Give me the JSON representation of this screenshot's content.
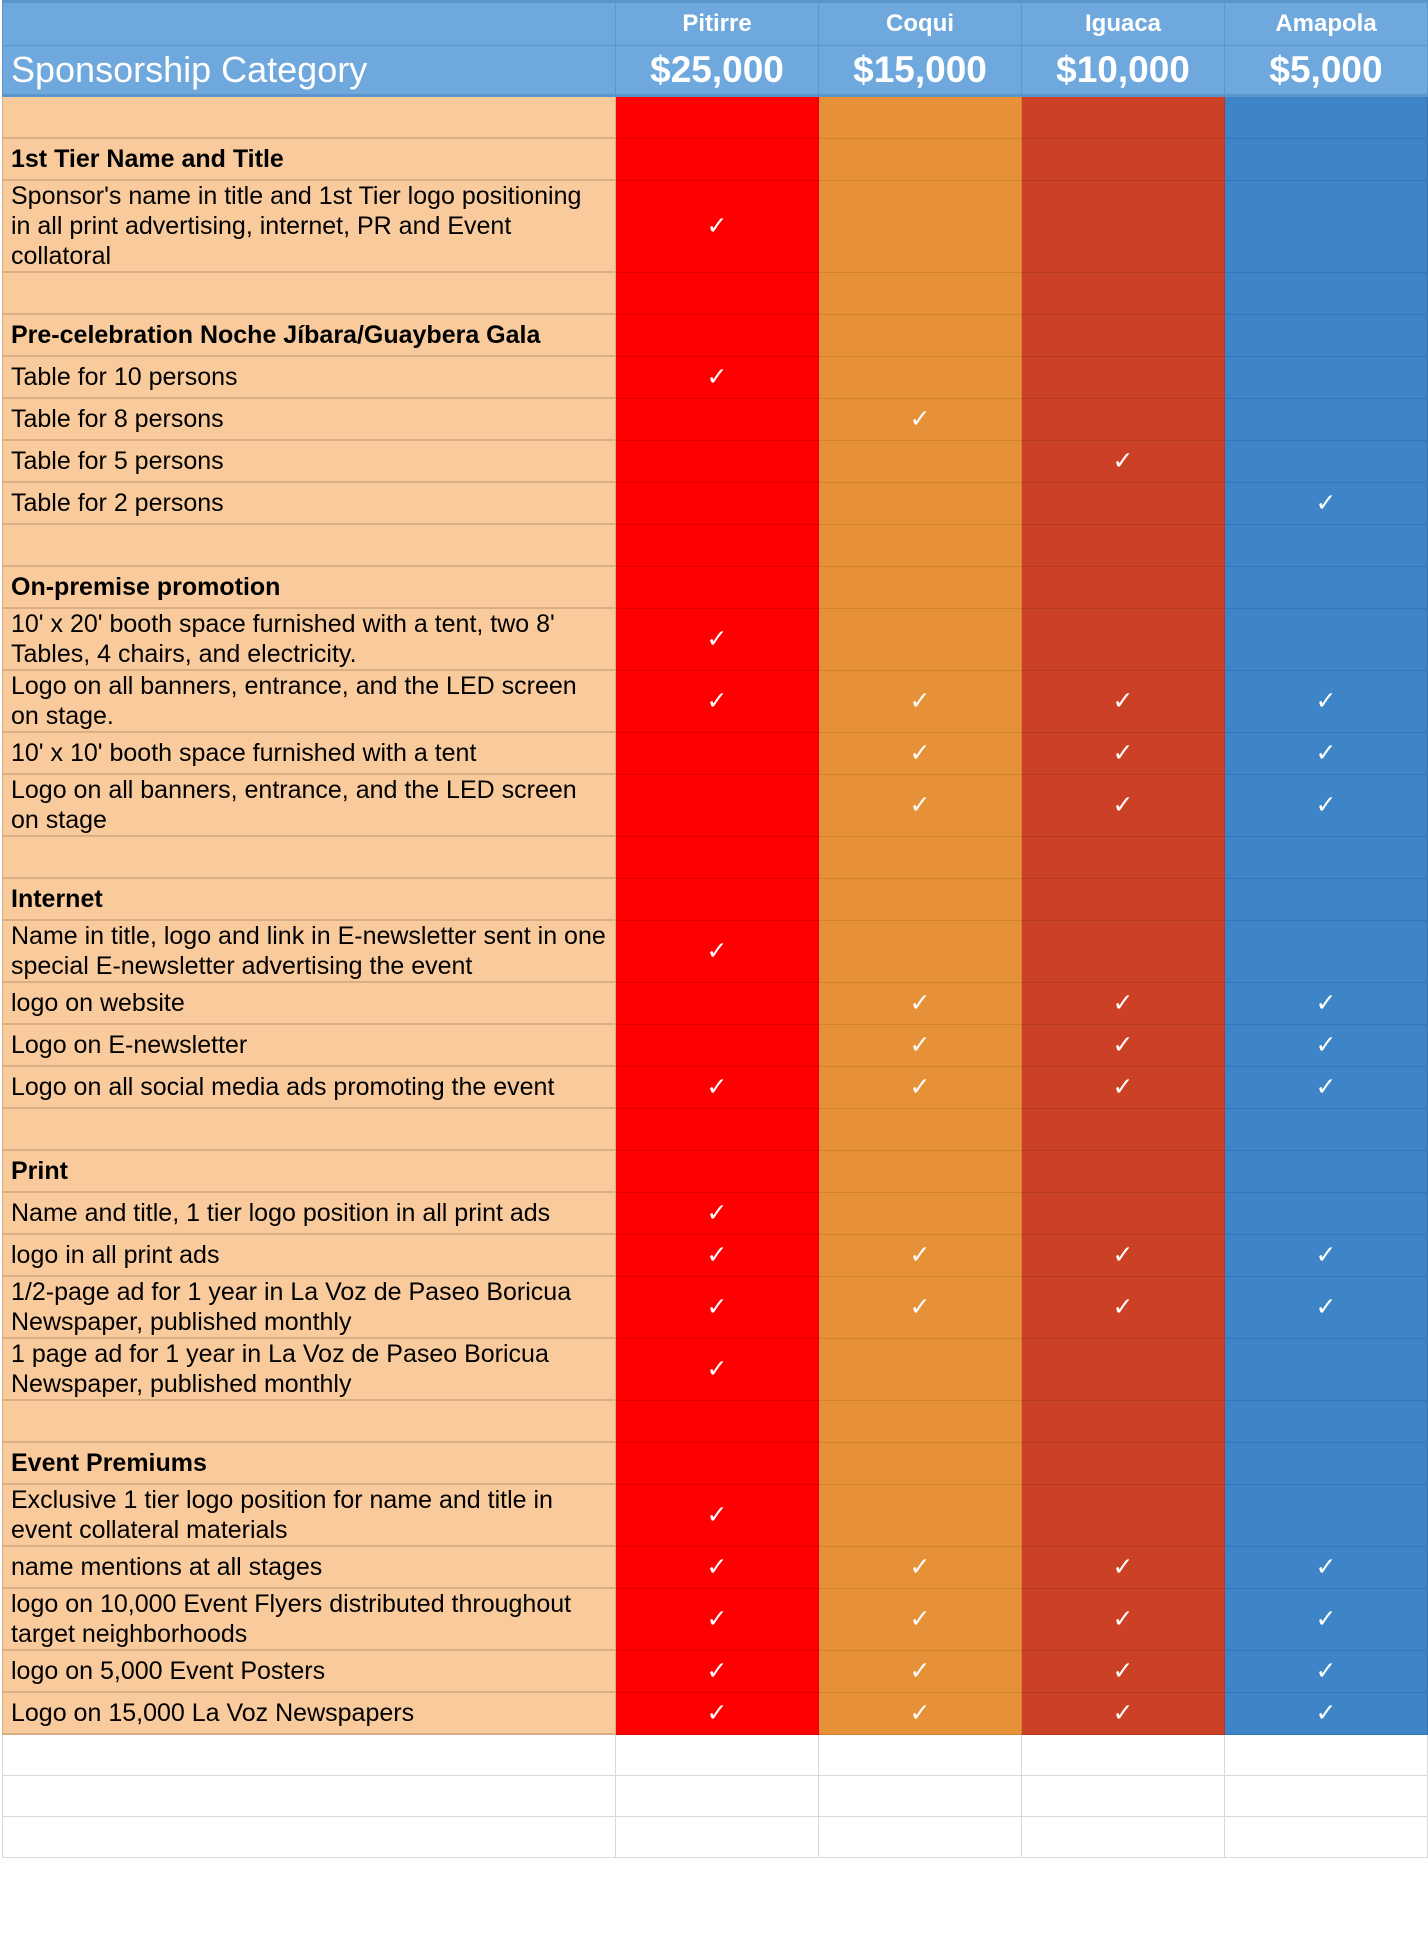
{
  "header": {
    "category_label": "Sponsorship Category",
    "tiers": [
      {
        "name": "Pitirre",
        "price": "$25,000",
        "color": "#ff0000"
      },
      {
        "name": "Coqui",
        "price": "$15,000",
        "color": "#e69138"
      },
      {
        "name": "Iguaca",
        "price": "$10,000",
        "color": "#cc4125"
      },
      {
        "name": "Amapola",
        "price": "$5,000",
        "color": "#3d85c6"
      }
    ]
  },
  "check_symbol": "✓",
  "rows": [
    {
      "type": "blank",
      "label": "",
      "checks": [
        0,
        0,
        0,
        0
      ]
    },
    {
      "type": "section",
      "label": "1st Tier Name and Title",
      "checks": [
        0,
        0,
        0,
        0
      ]
    },
    {
      "type": "item",
      "label": "Sponsor's name in title and 1st Tier logo positioning in all print advertising, internet, PR and Event collatoral",
      "checks": [
        1,
        0,
        0,
        0
      ]
    },
    {
      "type": "blank",
      "label": "",
      "checks": [
        0,
        0,
        0,
        0
      ]
    },
    {
      "type": "section",
      "label": "Pre-celebration Noche Jíbara/Guaybera Gala",
      "checks": [
        0,
        0,
        0,
        0
      ]
    },
    {
      "type": "item",
      "label": "Table for 10 persons",
      "checks": [
        1,
        0,
        0,
        0
      ]
    },
    {
      "type": "item",
      "label": "Table for 8 persons",
      "checks": [
        0,
        1,
        0,
        0
      ]
    },
    {
      "type": "item",
      "label": "Table for 5 persons",
      "checks": [
        0,
        0,
        1,
        0
      ]
    },
    {
      "type": "item",
      "label": "Table for 2 persons",
      "checks": [
        0,
        0,
        0,
        1
      ]
    },
    {
      "type": "blank",
      "label": "",
      "checks": [
        0,
        0,
        0,
        0
      ]
    },
    {
      "type": "section",
      "label": "On-premise promotion",
      "checks": [
        0,
        0,
        0,
        0
      ]
    },
    {
      "type": "item",
      "label": "10' x 20' booth space furnished with a tent, two 8' Tables, 4 chairs, and electricity.",
      "checks": [
        1,
        0,
        0,
        0
      ]
    },
    {
      "type": "item",
      "label": "Logo on all banners, entrance, and the LED screen on stage.",
      "checks": [
        1,
        1,
        1,
        1
      ]
    },
    {
      "type": "item",
      "label": "10' x 10' booth space furnished with a tent",
      "checks": [
        0,
        1,
        1,
        1
      ]
    },
    {
      "type": "item",
      "label": "Logo on all banners, entrance, and the LED screen on stage",
      "checks": [
        0,
        1,
        1,
        1
      ]
    },
    {
      "type": "blank",
      "label": "",
      "checks": [
        0,
        0,
        0,
        0
      ]
    },
    {
      "type": "section",
      "label": "Internet",
      "checks": [
        0,
        0,
        0,
        0
      ]
    },
    {
      "type": "item",
      "label": "Name in title, logo and link in E-newsletter sent in one special E-newsletter advertising the event",
      "checks": [
        1,
        0,
        0,
        0
      ]
    },
    {
      "type": "item",
      "label": "logo on website",
      "checks": [
        0,
        1,
        1,
        1
      ]
    },
    {
      "type": "item",
      "label": "Logo on E-newsletter",
      "checks": [
        0,
        1,
        1,
        1
      ]
    },
    {
      "type": "item",
      "label": "Logo on all social media ads promoting the event",
      "checks": [
        1,
        1,
        1,
        1
      ]
    },
    {
      "type": "blank",
      "label": "",
      "checks": [
        0,
        0,
        0,
        0
      ]
    },
    {
      "type": "section",
      "label": "Print",
      "checks": [
        0,
        0,
        0,
        0
      ]
    },
    {
      "type": "item",
      "label": "Name and title, 1 tier logo position in all print ads",
      "checks": [
        1,
        0,
        0,
        0
      ]
    },
    {
      "type": "item",
      "label": "logo in all print ads",
      "checks": [
        1,
        1,
        1,
        1
      ]
    },
    {
      "type": "item",
      "label": "1/2-page ad for 1 year in La Voz de Paseo Boricua Newspaper, published monthly",
      "checks": [
        1,
        1,
        1,
        1
      ]
    },
    {
      "type": "item",
      "label": "1 page ad for 1 year in La Voz de Paseo Boricua Newspaper, published monthly",
      "checks": [
        1,
        0,
        0,
        0
      ]
    },
    {
      "type": "blank",
      "label": "",
      "checks": [
        0,
        0,
        0,
        0
      ]
    },
    {
      "type": "section",
      "label": "Event Premiums",
      "checks": [
        0,
        0,
        0,
        0
      ]
    },
    {
      "type": "item",
      "label": "Exclusive 1 tier logo position for name and title in event collateral materials",
      "checks": [
        1,
        0,
        0,
        0
      ]
    },
    {
      "type": "item",
      "label": "name mentions at all stages",
      "checks": [
        1,
        1,
        1,
        1
      ]
    },
    {
      "type": "item",
      "label": "logo on 10,000 Event Flyers distributed throughout target neighborhoods",
      "checks": [
        1,
        1,
        1,
        1
      ]
    },
    {
      "type": "item",
      "label": "logo on 5,000 Event Posters",
      "checks": [
        1,
        1,
        1,
        1
      ]
    },
    {
      "type": "item",
      "label": "Logo on 15,000 La Voz Newspapers",
      "checks": [
        1,
        1,
        1,
        1
      ]
    }
  ]
}
